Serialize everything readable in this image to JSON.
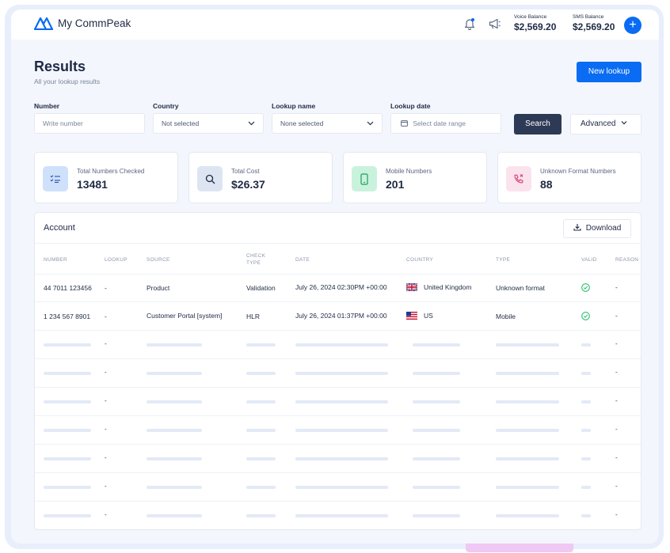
{
  "app": {
    "name": "My CommPeak"
  },
  "header": {
    "voice_balance_label": "Voice Balance",
    "voice_balance_value": "$2,569.20",
    "sms_balance_label": "SMS Balance",
    "sms_balance_value": "$2,569.20",
    "add_label": "+"
  },
  "page": {
    "title": "Results",
    "subtitle": "All your lookup results",
    "new_lookup_label": "New lookup"
  },
  "filters": {
    "number_label": "Number",
    "number_placeholder": "Write number",
    "country_label": "Country",
    "country_value": "Not selected",
    "lookup_name_label": "Lookup name",
    "lookup_name_value": "None selected",
    "lookup_date_label": "Lookup date",
    "lookup_date_placeholder": "Select date range",
    "search_label": "Search",
    "advanced_label": "Advanced"
  },
  "stats": [
    {
      "label": "Total Numbers Checked",
      "value": "13481",
      "icon": "checklist-icon",
      "color": "#cfe0fb"
    },
    {
      "label": "Total Cost",
      "value": "$26.37",
      "icon": "search-icon",
      "color": "#dde5f2"
    },
    {
      "label": "Mobile Numbers",
      "value": "201",
      "icon": "mobile-icon",
      "color": "#c9f2dd"
    },
    {
      "label": "Unknown Format Numbers",
      "value": "88",
      "icon": "phone-x-icon",
      "color": "#fbe3ee"
    }
  ],
  "table": {
    "title": "Account",
    "download_label": "Download",
    "columns": [
      "NUMBER",
      "LOOKUP",
      "SOURCE",
      "CHECK TYPE",
      "DATE",
      "COUNTRY",
      "TYPE",
      "VALID",
      "REASON"
    ],
    "rows": [
      {
        "number": "44 7011 123456",
        "lookup": "-",
        "source": "Product",
        "check_type": "Validation",
        "date": "July 26, 2024 02:30PM +00:00",
        "country": "United Kingdom",
        "flag": "uk-flag-icon",
        "type": "Unknown format",
        "valid": true,
        "reason": "-"
      },
      {
        "number": "1 234 567 8901",
        "lookup": "-",
        "source": "Customer Portal [system]",
        "check_type": "HLR",
        "date": "July 26, 2024 01:37PM +00:00",
        "country": "US",
        "flag": "us-flag-icon",
        "type": "Mobile",
        "valid": true,
        "reason": "-"
      }
    ],
    "placeholder_lookup": "-",
    "placeholder_reason": "-"
  },
  "colors": {
    "accent": "#0a6cf3",
    "dark_button": "#2d3a55",
    "valid": "#2fbf71"
  }
}
